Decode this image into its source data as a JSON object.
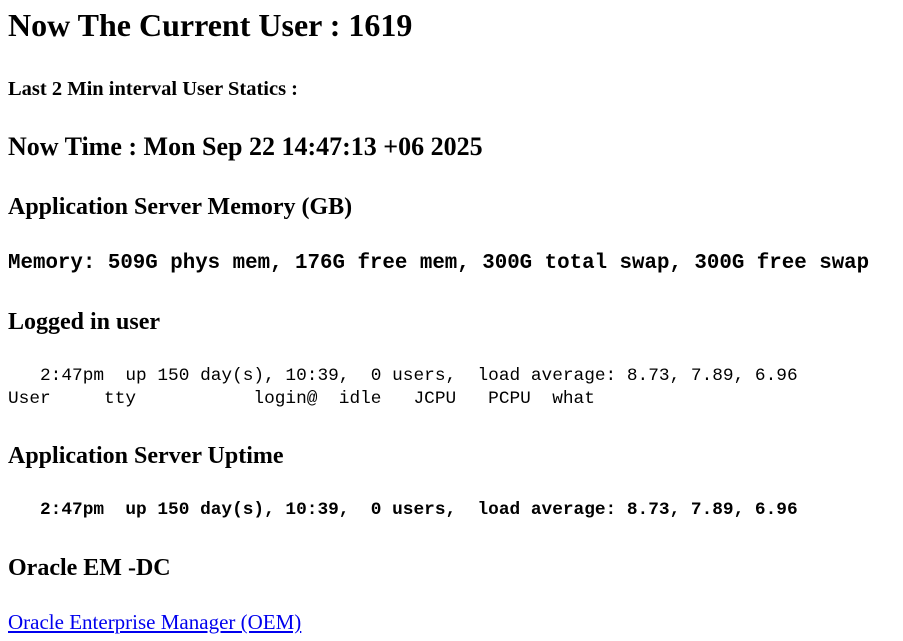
{
  "current_user_heading": "Now The Current User : 1619",
  "interval_heading": "Last 2 Min interval User Statics :",
  "now_time_heading": "Now Time : Mon Sep 22 14:47:13 +06 2025",
  "memory_section": {
    "title": "Application Server Memory (GB)",
    "line": "Memory: 509G phys mem, 176G free mem, 300G total swap, 300G free swap"
  },
  "logged_in_section": {
    "title": "Logged in user",
    "uptime_line": "   2:47pm  up 150 day(s), 10:39,  0 users,  load average: 8.73, 7.89, 6.96",
    "header_line": "User     tty           login@  idle   JCPU   PCPU  what"
  },
  "uptime_section": {
    "title": "Application Server Uptime",
    "line": "   2:47pm  up 150 day(s), 10:39,  0 users,  load average: 8.73, 7.89, 6.96"
  },
  "oem_section": {
    "title": "Oracle EM -DC",
    "link_label": "Oracle Enterprise Manager (OEM)"
  }
}
